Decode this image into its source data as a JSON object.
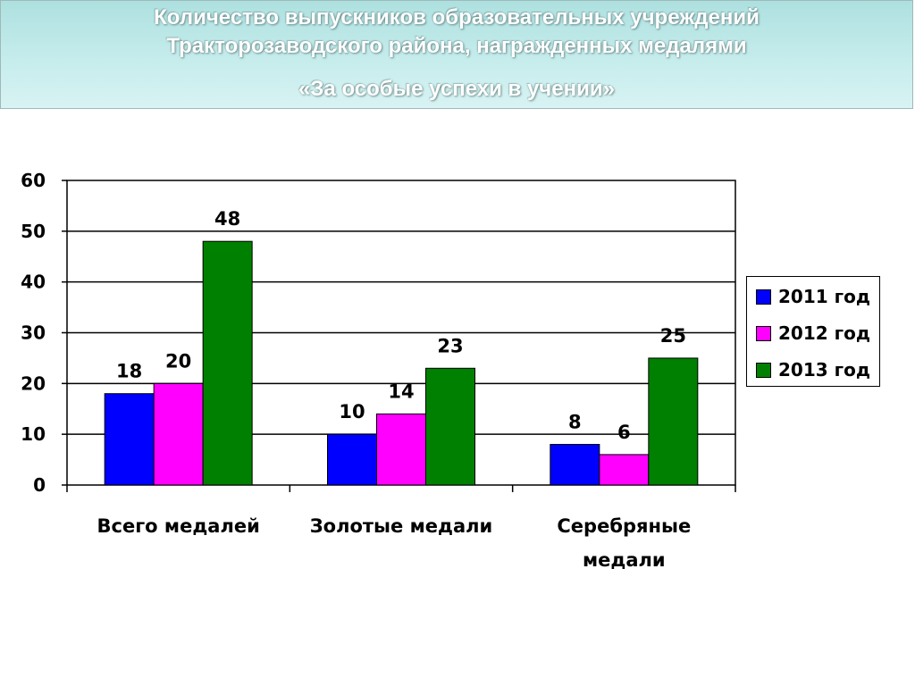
{
  "title": {
    "line1": "Количество выпускников образовательных учреждений",
    "line2": "Тракторозаводского района, награжденных медалями",
    "line3": "«За особые успехи в учении»"
  },
  "chart_data": {
    "type": "bar",
    "title": "",
    "xlabel": "",
    "ylabel": "",
    "categories": [
      [
        "Всего медалей"
      ],
      [
        "Золотые медали"
      ],
      [
        "Серебряные",
        "медали"
      ]
    ],
    "series": [
      {
        "name": "2011 год",
        "color": "#0000ff",
        "values": [
          18,
          10,
          8
        ]
      },
      {
        "name": "2012 год",
        "color": "#ff00ff",
        "values": [
          20,
          14,
          6
        ]
      },
      {
        "name": "2013 год",
        "color": "#008000",
        "values": [
          48,
          23,
          25
        ]
      }
    ],
    "ylim": [
      0,
      60
    ],
    "yticks": [
      0,
      10,
      20,
      30,
      40,
      50,
      60
    ],
    "grid": true,
    "legend": "right"
  }
}
